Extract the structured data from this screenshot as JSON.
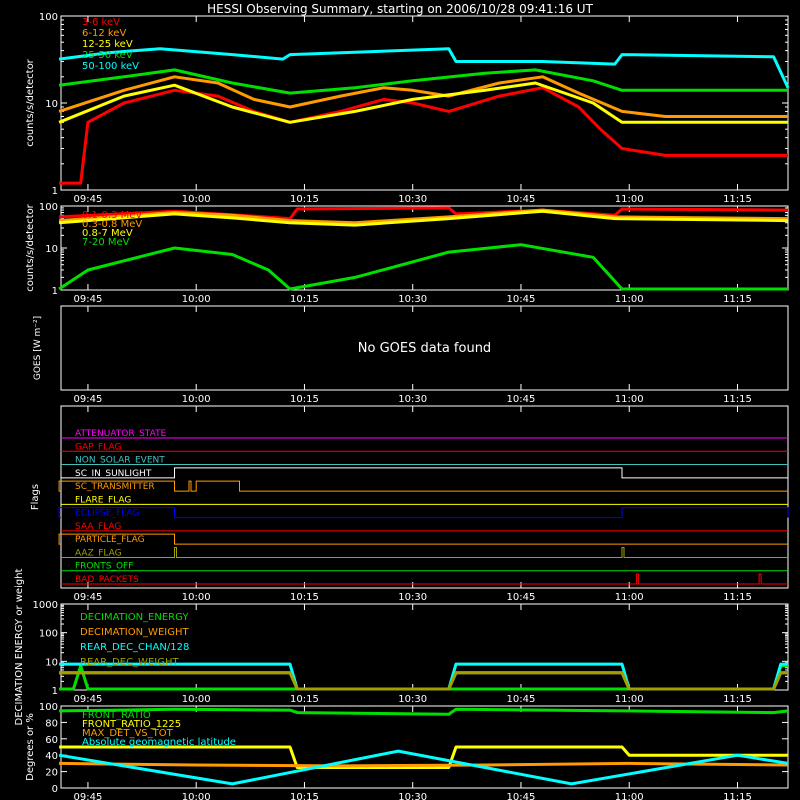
{
  "title": "HESSI Observing Summary, starting on 2006/10/28 09:41:16 UT",
  "colors": {
    "background": "#000000",
    "axes": "#ffffff",
    "red": "#ff0000",
    "orange": "#ff9a00",
    "yellow": "#ffff00",
    "green": "#00e000",
    "cyan": "#00ffff",
    "magenta": "#ff00ff",
    "blue": "#0000ff",
    "olive": "#a0a000",
    "teal": "#40c0c0"
  },
  "time_axis": {
    "start": "09:41:16",
    "end": "11:22",
    "ticks": [
      "09:45",
      "10:00",
      "10:15",
      "10:30",
      "10:45",
      "11:00",
      "11:15"
    ]
  },
  "chart_data": [
    {
      "type": "line",
      "name": "panel-1",
      "ylabel": "counts/s/detector",
      "yscale": "log",
      "ylim": [
        1,
        100
      ],
      "ytick_labels": [
        "1",
        "10",
        "100"
      ],
      "series": [
        {
          "name": "3-6 keV",
          "color": "red",
          "x": [
            "09:41",
            "09:44",
            "09:45",
            "09:50",
            "09:57",
            "10:03",
            "10:08",
            "10:13",
            "10:20",
            "10:26",
            "10:30",
            "10:35",
            "10:42",
            "10:48",
            "10:53",
            "10:56",
            "10:59",
            "11:05",
            "11:22"
          ],
          "y": [
            1.2,
            1.2,
            6,
            10,
            14,
            12,
            8,
            6,
            8,
            11,
            10,
            8,
            12,
            15,
            9,
            5,
            3,
            2.5,
            2.5
          ]
        },
        {
          "name": "6-12 keV",
          "color": "orange",
          "x": [
            "09:41",
            "09:50",
            "09:57",
            "10:03",
            "10:08",
            "10:13",
            "10:20",
            "10:26",
            "10:30",
            "10:35",
            "10:42",
            "10:48",
            "10:53",
            "10:59",
            "11:05",
            "11:22"
          ],
          "y": [
            8,
            14,
            20,
            17,
            11,
            9,
            12,
            15,
            14,
            12,
            17,
            20,
            13,
            8,
            7,
            7
          ]
        },
        {
          "name": "12-25 keV",
          "color": "yellow",
          "x": [
            "09:41",
            "09:50",
            "09:57",
            "10:05",
            "10:13",
            "10:22",
            "10:30",
            "10:40",
            "10:47",
            "10:55",
            "10:59",
            "11:10",
            "11:22"
          ],
          "y": [
            6,
            12,
            16,
            9,
            6,
            8,
            11,
            14,
            17,
            10,
            6,
            6,
            6
          ]
        },
        {
          "name": "25-50 keV",
          "color": "green",
          "x": [
            "09:41",
            "09:50",
            "09:57",
            "10:05",
            "10:13",
            "10:22",
            "10:30",
            "10:40",
            "10:47",
            "10:55",
            "10:59",
            "11:10",
            "11:22"
          ],
          "y": [
            16,
            20,
            24,
            17,
            13,
            15,
            18,
            22,
            24,
            18,
            14,
            14,
            14
          ]
        },
        {
          "name": "50-100 keV",
          "color": "cyan",
          "x": [
            "09:41",
            "09:48",
            "09:55",
            "10:05",
            "10:12",
            "10:13",
            "10:35",
            "10:36",
            "10:48",
            "10:58",
            "10:59",
            "11:20",
            "11:22"
          ],
          "y": [
            32,
            38,
            42,
            36,
            32,
            36,
            42,
            30,
            30,
            28,
            36,
            34,
            15
          ]
        }
      ]
    },
    {
      "type": "line",
      "name": "panel-2",
      "ylabel": "counts/s/detector",
      "yscale": "log",
      "ylim": [
        1,
        100
      ],
      "ytick_labels": [
        "1",
        "10",
        "100"
      ],
      "series": [
        {
          "name": "0.1-0.3 MeV",
          "color": "red",
          "x": [
            "09:41",
            "09:57",
            "10:05",
            "10:13",
            "10:14",
            "10:35",
            "10:36",
            "10:48",
            "10:58",
            "10:59",
            "11:22"
          ],
          "y": [
            55,
            75,
            62,
            50,
            85,
            90,
            65,
            80,
            60,
            85,
            80
          ]
        },
        {
          "name": "0.3-0.8 MeV",
          "color": "orange",
          "x": [
            "09:41",
            "09:57",
            "10:05",
            "10:13",
            "10:22",
            "10:35",
            "10:48",
            "10:58",
            "11:22"
          ],
          "y": [
            45,
            70,
            60,
            45,
            40,
            55,
            80,
            55,
            50
          ]
        },
        {
          "name": "0.8-7 MeV",
          "color": "yellow",
          "x": [
            "09:41",
            "09:57",
            "10:05",
            "10:13",
            "10:22",
            "10:35",
            "10:48",
            "10:58",
            "11:22"
          ],
          "y": [
            40,
            65,
            52,
            40,
            35,
            50,
            75,
            50,
            45
          ]
        },
        {
          "name": "7-20 MeV",
          "color": "green",
          "x": [
            "09:41",
            "09:45",
            "09:57",
            "10:05",
            "10:10",
            "10:13",
            "10:22",
            "10:35",
            "10:45",
            "10:55",
            "10:59",
            "11:22"
          ],
          "y": [
            1,
            3,
            10,
            7,
            3,
            1,
            2,
            8,
            12,
            6,
            1,
            1
          ]
        }
      ]
    },
    {
      "type": "line",
      "name": "panel-3",
      "ylabel": "GOES [W m⁻²]",
      "message": "No GOES data found"
    },
    {
      "type": "line",
      "name": "panel-4",
      "ylabel": "Flags",
      "flags": [
        {
          "name": "ATTENUATOR_STATE",
          "color": "magenta",
          "events": []
        },
        {
          "name": "GAP_FLAG",
          "color": "red",
          "events": []
        },
        {
          "name": "NON_SOLAR_EVENT",
          "color": "teal",
          "events": []
        },
        {
          "name": "SC_IN_SUNLIGHT",
          "color": "white",
          "events": [
            [
              "09:57",
              "10:59"
            ]
          ]
        },
        {
          "name": "SC_TRANSMITTER",
          "color": "orange",
          "events": [
            [
              "09:41",
              "09:57"
            ],
            [
              "09:59",
              "09:59"
            ],
            [
              "10:00",
              "10:06"
            ]
          ]
        },
        {
          "name": "FLARE_FLAG",
          "color": "yellow",
          "events": []
        },
        {
          "name": "ECLIPSE_FLAG",
          "color": "blue",
          "events": [
            [
              "09:41",
              "09:57"
            ],
            [
              "10:59",
              "11:22"
            ]
          ]
        },
        {
          "name": "SAA_FLAG",
          "color": "red",
          "events": []
        },
        {
          "name": "PARTICLE_FLAG",
          "color": "orange",
          "events": [
            [
              "09:41",
              "09:57"
            ]
          ]
        },
        {
          "name": "AAZ_FLAG",
          "color": "olive",
          "events": [
            [
              "09:57",
              "09:57"
            ],
            [
              "10:59",
              "10:59"
            ]
          ]
        },
        {
          "name": "FRONTS_OFF",
          "color": "green",
          "events": []
        },
        {
          "name": "BAD_PACKETS",
          "color": "red",
          "events": [
            [
              "11:01",
              "11:01"
            ],
            [
              "11:18",
              "11:18"
            ]
          ]
        }
      ]
    },
    {
      "type": "line",
      "name": "panel-5",
      "ylabel": "DECIMATION ENERGY or weight",
      "yscale": "log",
      "ylim": [
        1,
        1000
      ],
      "ytick_labels": [
        "1",
        "10",
        "100",
        "1000"
      ],
      "series": [
        {
          "name": "DECIMATION_ENERGY",
          "color": "green",
          "x": [
            "09:41",
            "09:43",
            "09:44",
            "09:45",
            "11:20",
            "11:21",
            "11:22"
          ],
          "y": [
            1,
            1,
            7,
            1,
            1,
            7,
            7
          ]
        },
        {
          "name": "DECIMATION_WEIGHT",
          "color": "orange",
          "x": [
            "09:41",
            "10:13",
            "10:14",
            "10:35",
            "10:36",
            "10:59",
            "11:00",
            "11:20",
            "11:21",
            "11:22"
          ],
          "y": [
            4,
            4,
            1,
            1,
            4,
            4,
            1,
            1,
            4,
            4
          ]
        },
        {
          "name": "REAR_DEC_CHAN/128",
          "color": "cyan",
          "x": [
            "09:41",
            "10:13",
            "10:14",
            "10:35",
            "10:36",
            "10:59",
            "11:00",
            "11:20",
            "11:21",
            "11:22"
          ],
          "y": [
            8,
            8,
            1,
            1,
            8,
            8,
            1,
            1,
            8,
            8
          ]
        },
        {
          "name": "REAR_DEC_WEIGHT",
          "color": "olive",
          "x": [
            "09:41",
            "10:13",
            "10:14",
            "10:35",
            "10:36",
            "10:59",
            "11:00",
            "11:20",
            "11:21",
            "11:22"
          ],
          "y": [
            4,
            4,
            1,
            1,
            4,
            4,
            1,
            1,
            4,
            4
          ]
        }
      ]
    },
    {
      "type": "line",
      "name": "panel-6",
      "ylabel": "Degrees or %",
      "ylim": [
        0,
        100
      ],
      "ytick_labels": [
        "0",
        "20",
        "40",
        "60",
        "80",
        "100"
      ],
      "series": [
        {
          "name": "FRONT_RATIO",
          "color": "green",
          "x": [
            "09:41",
            "09:57",
            "10:13",
            "10:14",
            "10:35",
            "10:36",
            "10:59",
            "11:00",
            "11:20",
            "11:22"
          ],
          "y": [
            94,
            96,
            95,
            92,
            90,
            96,
            94,
            94,
            92,
            94
          ]
        },
        {
          "name": "FRONT_RATIO_1225",
          "color": "yellow",
          "x": [
            "09:41",
            "10:13",
            "10:14",
            "10:35",
            "10:36",
            "10:59",
            "11:00",
            "11:22"
          ],
          "y": [
            50,
            50,
            25,
            25,
            50,
            50,
            40,
            40
          ]
        },
        {
          "name": "MAX_DET_VS_TOT",
          "color": "orange",
          "x": [
            "09:41",
            "10:00",
            "10:20",
            "10:40",
            "11:00",
            "11:22"
          ],
          "y": [
            30,
            28,
            27,
            28,
            30,
            28
          ]
        },
        {
          "name": "Absolute geomagnetic latitude",
          "color": "cyan",
          "x": [
            "09:41",
            "10:05",
            "10:28",
            "10:52",
            "11:15",
            "11:22"
          ],
          "y": [
            40,
            5,
            45,
            5,
            40,
            30
          ]
        }
      ]
    }
  ]
}
